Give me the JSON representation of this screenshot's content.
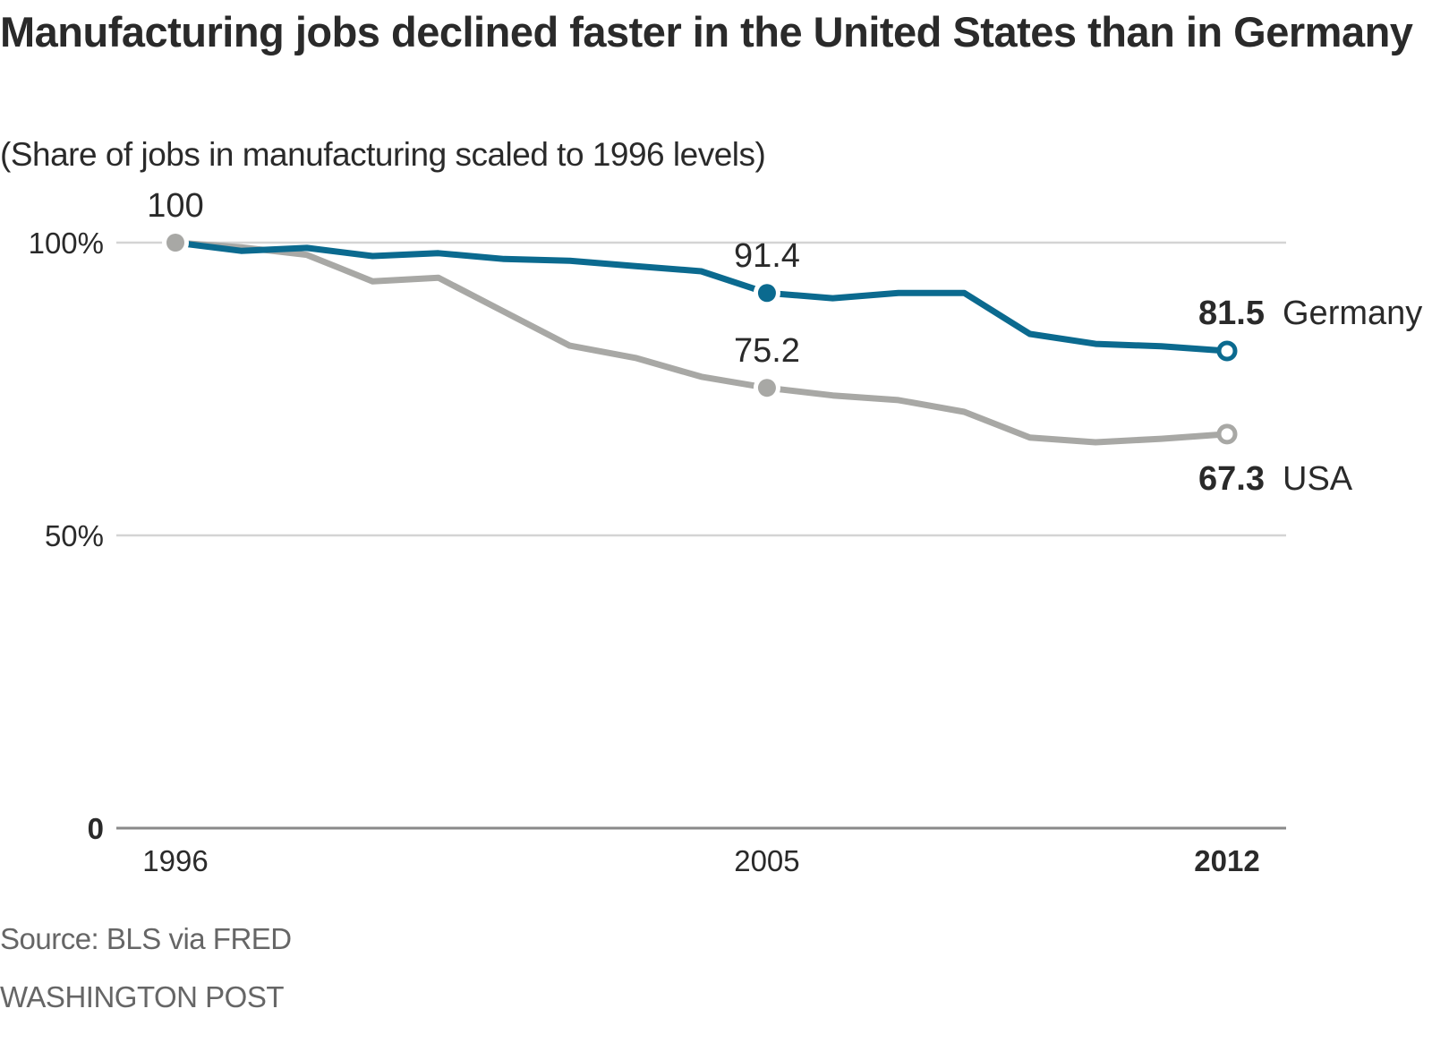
{
  "header": {
    "title": "Manufacturing jobs declined faster in the United States than in Germany",
    "subtitle": "(Share of jobs in manufacturing scaled to 1996 levels)"
  },
  "footer": {
    "source": "Source: BLS via FRED",
    "credit": "WASHINGTON POST"
  },
  "chart_data": {
    "type": "line",
    "title": "Manufacturing jobs declined faster in the United States than in Germany",
    "subtitle": "(Share of jobs in manufacturing scaled to 1996 levels)",
    "xlabel": "",
    "ylabel": "",
    "x": [
      1996,
      1997,
      1998,
      1999,
      2000,
      2001,
      2002,
      2003,
      2004,
      2005,
      2006,
      2007,
      2008,
      2009,
      2010,
      2011,
      2012
    ],
    "xlim": [
      1996,
      2012
    ],
    "ylim": [
      0,
      100
    ],
    "x_ticks": [
      {
        "value": 1996,
        "label": "1996",
        "bold": false
      },
      {
        "value": 2005,
        "label": "2005",
        "bold": false
      },
      {
        "value": 2012,
        "label": "2012",
        "bold": true
      }
    ],
    "y_ticks": [
      {
        "value": 100,
        "label": "100%",
        "bold": false
      },
      {
        "value": 50,
        "label": "50%",
        "bold": false
      },
      {
        "value": 0,
        "label": "0",
        "bold": true
      }
    ],
    "grid": true,
    "legend": "direct labels at line ends (right)",
    "series": [
      {
        "name": "Germany",
        "color": "#0b6a8f",
        "values": [
          100,
          98.6,
          99.1,
          97.7,
          98.2,
          97.2,
          96.9,
          96.0,
          95.1,
          91.4,
          90.5,
          91.4,
          91.4,
          84.4,
          82.7,
          82.3,
          81.5
        ],
        "end_label": {
          "value": "81.5",
          "name": "Germany"
        }
      },
      {
        "name": "USA",
        "color": "#a8a8a5",
        "values": [
          100,
          99.2,
          97.9,
          93.4,
          94.0,
          88.2,
          82.4,
          80.3,
          77.1,
          75.2,
          73.9,
          73.1,
          71.1,
          66.7,
          65.9,
          66.5,
          67.3
        ],
        "end_label": {
          "value": "67.3",
          "name": "USA"
        }
      }
    ],
    "annotations": [
      {
        "x": 1996,
        "series": "USA",
        "text": "100"
      },
      {
        "x": 2005,
        "series": "Germany",
        "text": "91.4"
      },
      {
        "x": 2005,
        "series": "USA",
        "text": "75.2"
      }
    ],
    "colors": {
      "grid": "#d4d4d4",
      "baseline": "#8a8a8a",
      "text": "#2a2a2a"
    }
  }
}
